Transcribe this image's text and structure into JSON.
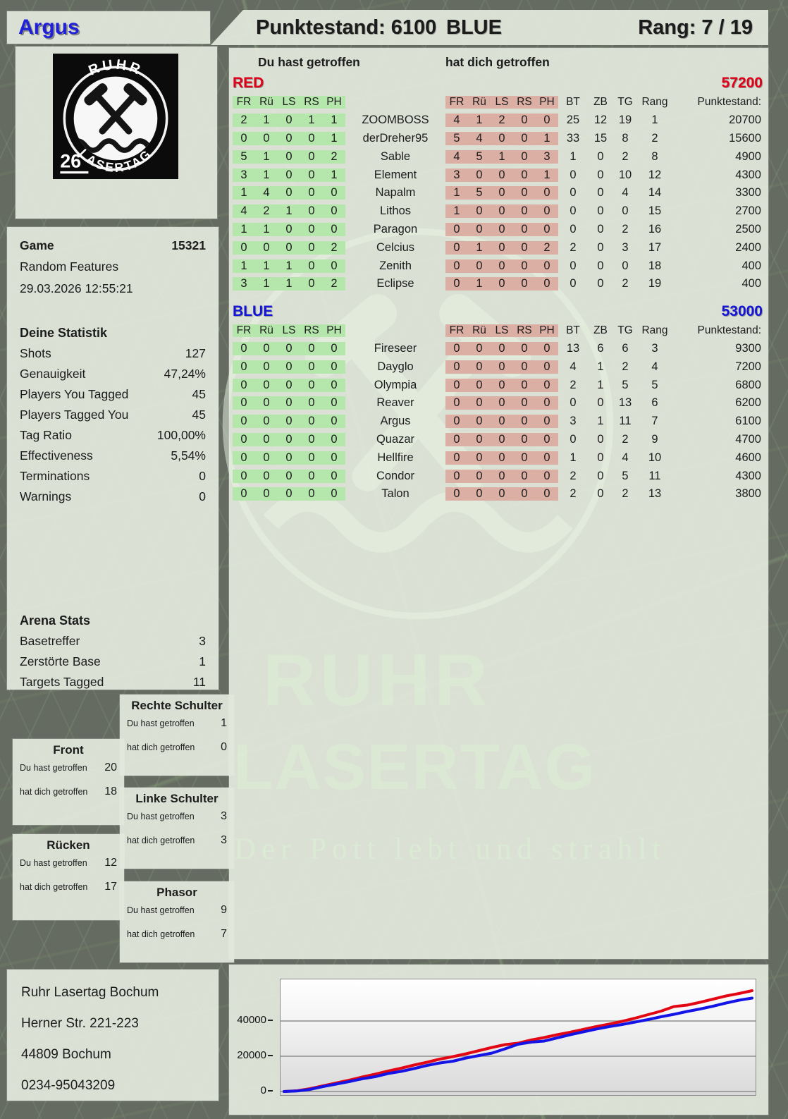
{
  "header": {
    "player_name": "Argus",
    "score_label": "Punktestand: 6100",
    "team_label": "BLUE",
    "rank_label": "Rang: 7 / 19"
  },
  "logo": {
    "top": "RUHR",
    "bottom": "LASERTAG",
    "badge": "26"
  },
  "game": {
    "label": "Game",
    "number": "15321",
    "mode": "Random Features",
    "datetime": "29.03.2026 12:55:21"
  },
  "your_stats": {
    "title": "Deine Statistik",
    "rows": [
      {
        "label": "Shots",
        "value": "127"
      },
      {
        "label": "Genauigkeit",
        "value": "47,24%"
      },
      {
        "label": "Players You Tagged",
        "value": "45"
      },
      {
        "label": "Players Tagged You",
        "value": "45"
      },
      {
        "label": "Tag Ratio",
        "value": "100,00%"
      },
      {
        "label": "Effectiveness",
        "value": "5,54%"
      },
      {
        "label": "Terminations",
        "value": "0"
      },
      {
        "label": "Warnings",
        "value": "0"
      }
    ]
  },
  "arena_stats": {
    "title": "Arena Stats",
    "rows": [
      {
        "label": "Basetreffer",
        "value": "3"
      },
      {
        "label": "Zerstörte Base",
        "value": "1"
      },
      {
        "label": "Targets Tagged",
        "value": "11"
      }
    ]
  },
  "zone_labels": {
    "hit": "Du hast getroffen",
    "got": "hat dich getroffen"
  },
  "zones": [
    {
      "title": "Front",
      "hit": "20",
      "got": "18"
    },
    {
      "title": "Rücken",
      "hit": "12",
      "got": "17"
    },
    {
      "title": "Rechte Schulter",
      "hit": "1",
      "got": "0"
    },
    {
      "title": "Linke Schulter",
      "hit": "3",
      "got": "3"
    },
    {
      "title": "Phasor",
      "hit": "9",
      "got": "7"
    }
  ],
  "scoreboard": {
    "left_heading": "Du hast getroffen",
    "right_heading": "hat dich getroffen",
    "hit_cols": [
      "FR",
      "Rü",
      "LS",
      "RS",
      "PH"
    ],
    "stat_cols": [
      "BT",
      "ZB",
      "TG",
      "Rang"
    ],
    "punkte_col": "Punktestand:",
    "teams": [
      {
        "name": "RED",
        "color": "#e1001a",
        "total": "57200",
        "players": [
          {
            "name": "ZOOMBOSS",
            "hit": [
              2,
              1,
              0,
              1,
              1
            ],
            "got": [
              4,
              1,
              2,
              0,
              0
            ],
            "bt": "25",
            "zb": "12",
            "tg": "19",
            "rang": "1",
            "punkte": "20700"
          },
          {
            "name": "derDreher95",
            "hit": [
              0,
              0,
              0,
              0,
              1
            ],
            "got": [
              5,
              4,
              0,
              0,
              1
            ],
            "bt": "33",
            "zb": "15",
            "tg": "8",
            "rang": "2",
            "punkte": "15600"
          },
          {
            "name": "Sable",
            "hit": [
              5,
              1,
              0,
              0,
              2
            ],
            "got": [
              4,
              5,
              1,
              0,
              3
            ],
            "bt": "1",
            "zb": "0",
            "tg": "2",
            "rang": "8",
            "punkte": "4900"
          },
          {
            "name": "Element",
            "hit": [
              3,
              1,
              0,
              0,
              1
            ],
            "got": [
              3,
              0,
              0,
              0,
              1
            ],
            "bt": "0",
            "zb": "0",
            "tg": "10",
            "rang": "12",
            "punkte": "4300"
          },
          {
            "name": "Napalm",
            "hit": [
              1,
              4,
              0,
              0,
              0
            ],
            "got": [
              1,
              5,
              0,
              0,
              0
            ],
            "bt": "0",
            "zb": "0",
            "tg": "4",
            "rang": "14",
            "punkte": "3300"
          },
          {
            "name": "Lithos",
            "hit": [
              4,
              2,
              1,
              0,
              0
            ],
            "got": [
              1,
              0,
              0,
              0,
              0
            ],
            "bt": "0",
            "zb": "0",
            "tg": "0",
            "rang": "15",
            "punkte": "2700"
          },
          {
            "name": "Paragon",
            "hit": [
              1,
              1,
              0,
              0,
              0
            ],
            "got": [
              0,
              0,
              0,
              0,
              0
            ],
            "bt": "0",
            "zb": "0",
            "tg": "2",
            "rang": "16",
            "punkte": "2500"
          },
          {
            "name": "Celcius",
            "hit": [
              0,
              0,
              0,
              0,
              2
            ],
            "got": [
              0,
              1,
              0,
              0,
              2
            ],
            "bt": "2",
            "zb": "0",
            "tg": "3",
            "rang": "17",
            "punkte": "2400"
          },
          {
            "name": "Zenith",
            "hit": [
              1,
              1,
              1,
              0,
              0
            ],
            "got": [
              0,
              0,
              0,
              0,
              0
            ],
            "bt": "0",
            "zb": "0",
            "tg": "0",
            "rang": "18",
            "punkte": "400"
          },
          {
            "name": "Eclipse",
            "hit": [
              3,
              1,
              1,
              0,
              2
            ],
            "got": [
              0,
              1,
              0,
              0,
              0
            ],
            "bt": "0",
            "zb": "0",
            "tg": "2",
            "rang": "19",
            "punkte": "400"
          }
        ]
      },
      {
        "name": "BLUE",
        "color": "#1414d8",
        "total": "53000",
        "players": [
          {
            "name": "Fireseer",
            "hit": [
              0,
              0,
              0,
              0,
              0
            ],
            "got": [
              0,
              0,
              0,
              0,
              0
            ],
            "bt": "13",
            "zb": "6",
            "tg": "6",
            "rang": "3",
            "punkte": "9300"
          },
          {
            "name": "Dayglo",
            "hit": [
              0,
              0,
              0,
              0,
              0
            ],
            "got": [
              0,
              0,
              0,
              0,
              0
            ],
            "bt": "4",
            "zb": "1",
            "tg": "2",
            "rang": "4",
            "punkte": "7200"
          },
          {
            "name": "Olympia",
            "hit": [
              0,
              0,
              0,
              0,
              0
            ],
            "got": [
              0,
              0,
              0,
              0,
              0
            ],
            "bt": "2",
            "zb": "1",
            "tg": "5",
            "rang": "5",
            "punkte": "6800"
          },
          {
            "name": "Reaver",
            "hit": [
              0,
              0,
              0,
              0,
              0
            ],
            "got": [
              0,
              0,
              0,
              0,
              0
            ],
            "bt": "0",
            "zb": "0",
            "tg": "13",
            "rang": "6",
            "punkte": "6200"
          },
          {
            "name": "Argus",
            "hit": [
              0,
              0,
              0,
              0,
              0
            ],
            "got": [
              0,
              0,
              0,
              0,
              0
            ],
            "bt": "3",
            "zb": "1",
            "tg": "11",
            "rang": "7",
            "punkte": "6100"
          },
          {
            "name": "Quazar",
            "hit": [
              0,
              0,
              0,
              0,
              0
            ],
            "got": [
              0,
              0,
              0,
              0,
              0
            ],
            "bt": "0",
            "zb": "0",
            "tg": "2",
            "rang": "9",
            "punkte": "4700"
          },
          {
            "name": "Hellfire",
            "hit": [
              0,
              0,
              0,
              0,
              0
            ],
            "got": [
              0,
              0,
              0,
              0,
              0
            ],
            "bt": "1",
            "zb": "0",
            "tg": "4",
            "rang": "10",
            "punkte": "4600"
          },
          {
            "name": "Condor",
            "hit": [
              0,
              0,
              0,
              0,
              0
            ],
            "got": [
              0,
              0,
              0,
              0,
              0
            ],
            "bt": "2",
            "zb": "0",
            "tg": "5",
            "rang": "11",
            "punkte": "4300"
          },
          {
            "name": "Talon",
            "hit": [
              0,
              0,
              0,
              0,
              0
            ],
            "got": [
              0,
              0,
              0,
              0,
              0
            ],
            "bt": "2",
            "zb": "0",
            "tg": "2",
            "rang": "13",
            "punkte": "3800"
          }
        ]
      }
    ]
  },
  "watermark": {
    "line1": "RUHR",
    "line2": "LASERTAG",
    "tagline": "Der Pott lebt und strahlt"
  },
  "address": {
    "lines": [
      "Ruhr Lasertag Bochum",
      "Herner Str. 221-223",
      "44809 Bochum",
      "0234-95043209"
    ]
  },
  "chart_data": {
    "type": "line",
    "title": "",
    "xlabel": "",
    "ylabel": "",
    "ylim": [
      0,
      62000
    ],
    "yticks": [
      0,
      20000,
      40000
    ],
    "ytick_labels": [
      "0",
      "20000",
      "40000"
    ],
    "grid": true,
    "legend": "none",
    "series": [
      {
        "name": "RED cumulative score",
        "color": "#e30613",
        "values": [
          0,
          400,
          1600,
          3200,
          4800,
          6400,
          8200,
          9800,
          11600,
          13200,
          15000,
          16600,
          18400,
          19800,
          21400,
          23200,
          25000,
          26600,
          27400,
          29200,
          30600,
          32200,
          33600,
          35200,
          36800,
          38200,
          39800,
          41600,
          43600,
          45600,
          48200,
          49000,
          50600,
          52400,
          54200,
          55600,
          57200
        ]
      },
      {
        "name": "BLUE cumulative score",
        "color": "#1414e6",
        "values": [
          0,
          300,
          1200,
          2800,
          4200,
          5600,
          7200,
          8400,
          10200,
          11400,
          13000,
          14800,
          16200,
          17200,
          19000,
          20400,
          21800,
          24200,
          26800,
          28000,
          28600,
          30400,
          32200,
          33800,
          35400,
          36800,
          38000,
          39400,
          40800,
          42400,
          43800,
          45400,
          46800,
          48400,
          50200,
          51800,
          53000
        ]
      }
    ]
  }
}
